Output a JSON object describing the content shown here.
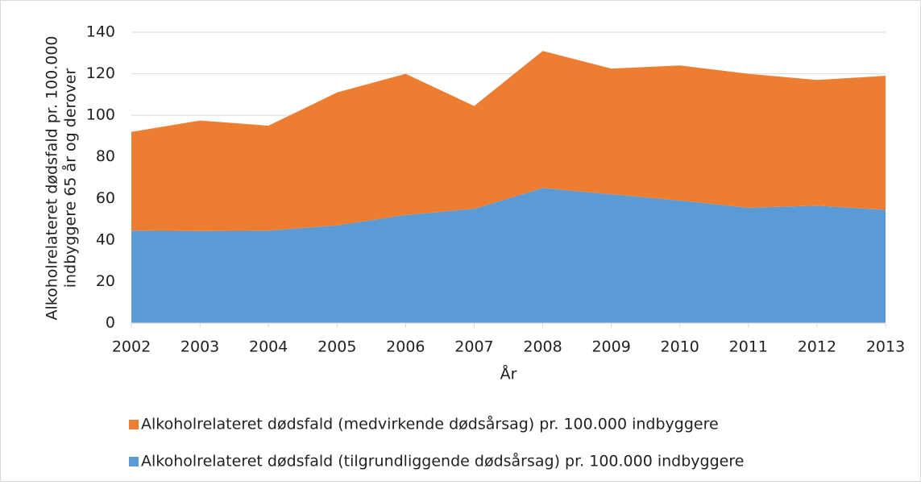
{
  "chart_data": {
    "type": "stacked_area",
    "xlabel": "År",
    "ylabel": [
      "Alkoholrelateret dødsfald pr. 100.000",
      "indbyggere 65 år og derover"
    ],
    "categories": [
      "2002",
      "2003",
      "2004",
      "2005",
      "2006",
      "2007",
      "2008",
      "2009",
      "2010",
      "2011",
      "2012",
      "2013"
    ],
    "series": [
      {
        "name": "Alkoholrelateret dødsfald (tilgrundliggende dødsårsag) pr. 100.000 indbyggere",
        "color": "#5b9bd5",
        "values": [
          44.5,
          44.3,
          44.5,
          47,
          52,
          55,
          65,
          62,
          59,
          55.5,
          56.5,
          54.5
        ]
      },
      {
        "name": "Alkoholrelateret dødsfald (medvirkende dødsårsag) pr. 100.000 indbyggere",
        "color": "#ed7d31",
        "values": [
          47.5,
          53.2,
          50.5,
          64,
          68,
          49.5,
          66,
          60.5,
          65,
          64.5,
          60.5,
          64.5
        ]
      }
    ],
    "ylim": [
      0,
      140
    ],
    "yticks": [
      0,
      20,
      40,
      60,
      80,
      100,
      120,
      140
    ],
    "grid": true,
    "legend": "bottom"
  }
}
